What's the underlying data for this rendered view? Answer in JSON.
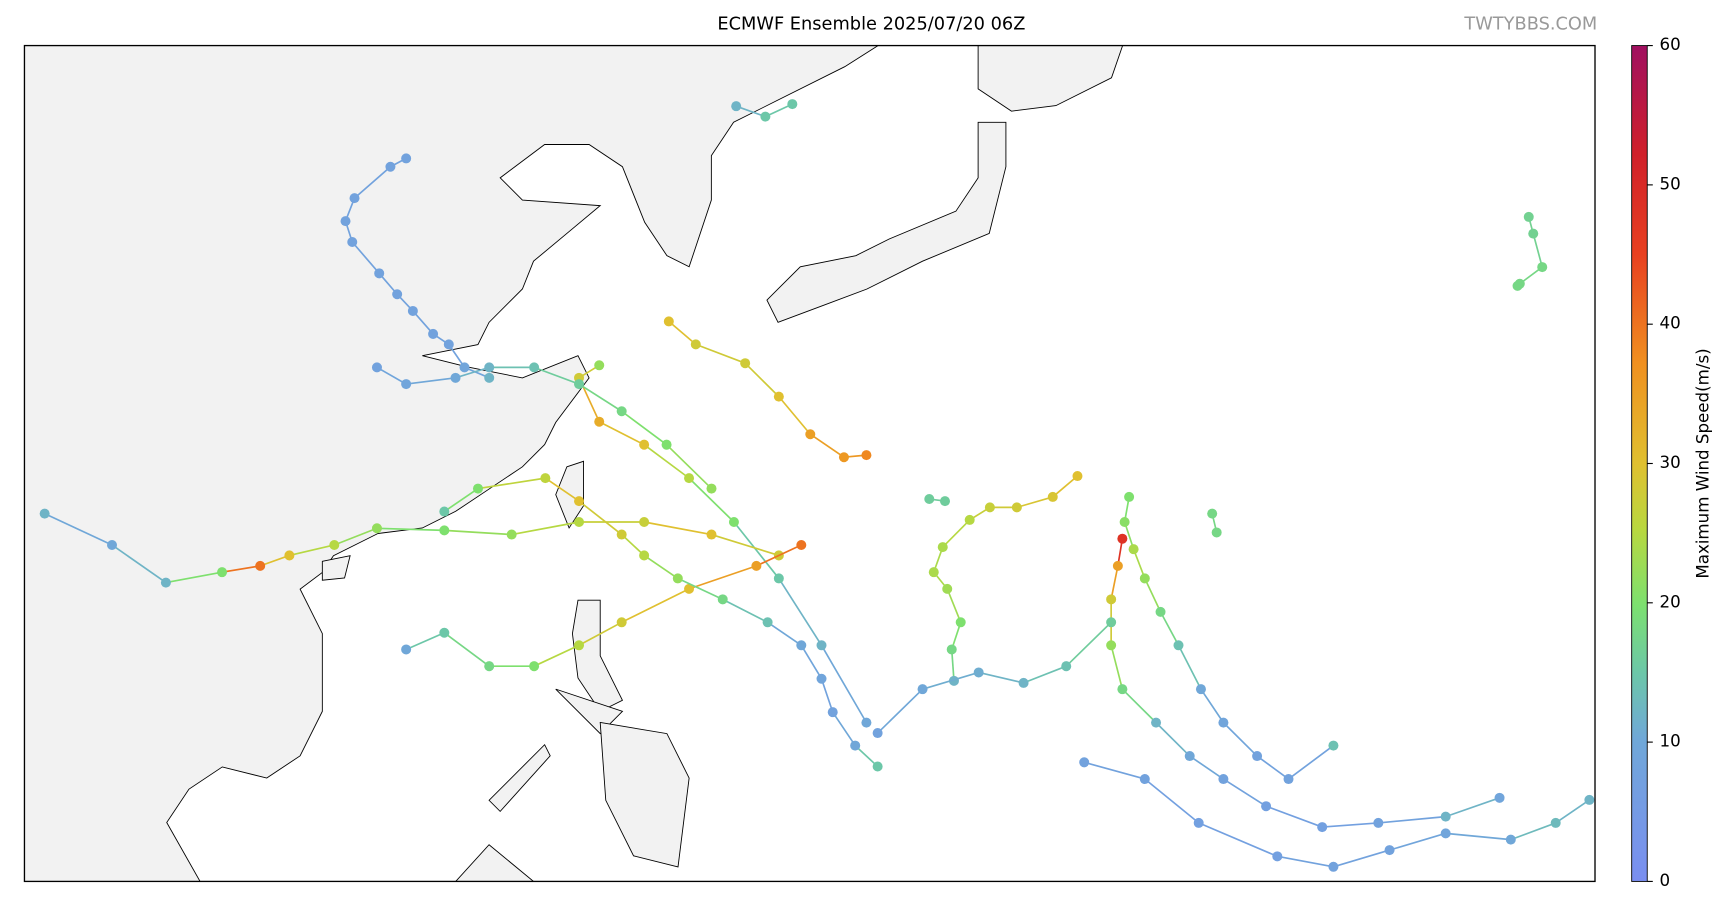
{
  "title": "ECMWF Ensemble 2025/07/20 06Z",
  "watermark": "TWTYBBS.COM",
  "colorbar": {
    "label": "Maximum Wind Speed(m/s)",
    "lim": [
      0,
      60
    ],
    "ticks": [
      0,
      10,
      20,
      30,
      40,
      50,
      60
    ]
  },
  "tracks": [
    {
      "points": [
        {
          "lon": 114.0,
          "lat": 39.6,
          "wind": 8
        },
        {
          "lon": 113.3,
          "lat": 39.2,
          "wind": 8
        },
        {
          "lon": 111.7,
          "lat": 37.7,
          "wind": 8
        },
        {
          "lon": 111.3,
          "lat": 36.6,
          "wind": 8
        },
        {
          "lon": 111.6,
          "lat": 35.6,
          "wind": 8
        },
        {
          "lon": 112.8,
          "lat": 34.1,
          "wind": 8
        },
        {
          "lon": 113.6,
          "lat": 33.1,
          "wind": 8
        },
        {
          "lon": 114.3,
          "lat": 32.3,
          "wind": 8
        },
        {
          "lon": 115.2,
          "lat": 31.2,
          "wind": 8
        },
        {
          "lon": 115.9,
          "lat": 30.7,
          "wind": 8
        },
        {
          "lon": 116.6,
          "lat": 29.6,
          "wind": 9
        },
        {
          "lon": 117.7,
          "lat": 29.1,
          "wind": 12
        }
      ]
    },
    {
      "points": [
        {
          "lon": 143.9,
          "lat": 24.4,
          "wind": 30
        },
        {
          "lon": 142.8,
          "lat": 23.4,
          "wind": 29
        },
        {
          "lon": 141.2,
          "lat": 22.9,
          "wind": 28
        },
        {
          "lon": 140.0,
          "lat": 22.9,
          "wind": 27
        },
        {
          "lon": 139.1,
          "lat": 22.3,
          "wind": 25
        },
        {
          "lon": 137.9,
          "lat": 21.0,
          "wind": 24
        },
        {
          "lon": 137.5,
          "lat": 19.8,
          "wind": 24
        },
        {
          "lon": 138.1,
          "lat": 19.0,
          "wind": 23
        },
        {
          "lon": 138.7,
          "lat": 17.4,
          "wind": 20
        },
        {
          "lon": 138.3,
          "lat": 16.1,
          "wind": 18
        },
        {
          "lon": 138.4,
          "lat": 14.6,
          "wind": 12
        }
      ]
    },
    {
      "points": [
        {
          "lon": 164.0,
          "lat": 36.8,
          "wind": 17
        },
        {
          "lon": 164.2,
          "lat": 36.0,
          "wind": 17
        },
        {
          "lon": 164.6,
          "lat": 34.4,
          "wind": 18
        },
        {
          "lon": 163.6,
          "lat": 33.6,
          "wind": 18
        },
        {
          "lon": 163.5,
          "lat": 33.5,
          "wind": 18
        }
      ]
    },
    {
      "points": [
        {
          "lon": 134.5,
          "lat": 12.6,
          "wind": 10
        },
        {
          "lon": 132.5,
          "lat": 16.3,
          "wind": 12
        },
        {
          "lon": 130.6,
          "lat": 19.5,
          "wind": 15
        },
        {
          "lon": 128.6,
          "lat": 22.2,
          "wind": 20
        },
        {
          "lon": 126.6,
          "lat": 24.3,
          "wind": 25
        },
        {
          "lon": 124.6,
          "lat": 25.9,
          "wind": 30
        },
        {
          "lon": 122.6,
          "lat": 27.0,
          "wind": 33
        },
        {
          "lon": 121.7,
          "lat": 29.1,
          "wind": 28
        },
        {
          "lon": 122.6,
          "lat": 29.7,
          "wind": 22
        }
      ]
    },
    {
      "points": [
        {
          "lon": 130.6,
          "lat": 20.6,
          "wind": 28
        },
        {
          "lon": 127.6,
          "lat": 21.6,
          "wind": 30
        },
        {
          "lon": 124.6,
          "lat": 22.2,
          "wind": 27
        },
        {
          "lon": 121.7,
          "lat": 22.2,
          "wind": 25
        },
        {
          "lon": 118.7,
          "lat": 21.6,
          "wind": 22
        },
        {
          "lon": 115.7,
          "lat": 21.8,
          "wind": 20
        },
        {
          "lon": 112.7,
          "lat": 21.9,
          "wind": 22
        },
        {
          "lon": 110.8,
          "lat": 21.1,
          "wind": 25
        },
        {
          "lon": 108.8,
          "lat": 20.6,
          "wind": 30
        },
        {
          "lon": 107.5,
          "lat": 20.1,
          "wind": 40
        },
        {
          "lon": 105.8,
          "lat": 19.8,
          "wind": 20
        },
        {
          "lon": 103.3,
          "lat": 19.3,
          "wind": 12
        },
        {
          "lon": 100.9,
          "lat": 21.1,
          "wind": 10
        },
        {
          "lon": 97.9,
          "lat": 22.6,
          "wind": 12
        }
      ]
    },
    {
      "points": [
        {
          "lon": 145.9,
          "lat": 21.4,
          "wind": 48
        },
        {
          "lon": 145.7,
          "lat": 20.1,
          "wind": 35
        },
        {
          "lon": 145.4,
          "lat": 18.5,
          "wind": 28
        },
        {
          "lon": 145.4,
          "lat": 16.3,
          "wind": 22
        },
        {
          "lon": 145.9,
          "lat": 14.2,
          "wind": 18
        },
        {
          "lon": 147.4,
          "lat": 12.6,
          "wind": 12
        },
        {
          "lon": 148.9,
          "lat": 11.0,
          "wind": 10
        },
        {
          "lon": 150.4,
          "lat": 9.9,
          "wind": 8
        },
        {
          "lon": 152.3,
          "lat": 8.6,
          "wind": 7
        },
        {
          "lon": 154.8,
          "lat": 7.6,
          "wind": 7
        },
        {
          "lon": 157.3,
          "lat": 7.8,
          "wind": 8
        },
        {
          "lon": 160.3,
          "lat": 8.1,
          "wind": 12
        },
        {
          "lon": 162.7,
          "lat": 9.0,
          "wind": 9
        }
      ]
    },
    {
      "points": [
        {
          "lon": 146.2,
          "lat": 23.4,
          "wind": 20
        },
        {
          "lon": 146.0,
          "lat": 22.2,
          "wind": 21
        },
        {
          "lon": 146.4,
          "lat": 20.9,
          "wind": 24
        },
        {
          "lon": 146.9,
          "lat": 19.5,
          "wind": 22
        },
        {
          "lon": 147.6,
          "lat": 17.9,
          "wind": 18
        },
        {
          "lon": 148.4,
          "lat": 16.3,
          "wind": 14
        },
        {
          "lon": 149.4,
          "lat": 14.2,
          "wind": 10
        },
        {
          "lon": 150.4,
          "lat": 12.6,
          "wind": 9
        },
        {
          "lon": 151.9,
          "lat": 11.0,
          "wind": 8
        },
        {
          "lon": 153.3,
          "lat": 9.9,
          "wind": 8
        },
        {
          "lon": 155.3,
          "lat": 11.5,
          "wind": 14
        }
      ]
    },
    {
      "points": [
        {
          "lon": 166.7,
          "lat": 8.9,
          "wind": 12
        },
        {
          "lon": 165.2,
          "lat": 7.8,
          "wind": 13
        },
        {
          "lon": 163.2,
          "lat": 7.0,
          "wind": 10
        },
        {
          "lon": 160.3,
          "lat": 7.3,
          "wind": 9
        },
        {
          "lon": 157.8,
          "lat": 6.5,
          "wind": 8
        },
        {
          "lon": 155.3,
          "lat": 5.7,
          "wind": 8
        },
        {
          "lon": 152.8,
          "lat": 6.2,
          "wind": 7
        },
        {
          "lon": 149.3,
          "lat": 7.8,
          "wind": 7
        },
        {
          "lon": 146.9,
          "lat": 9.9,
          "wind": 8
        },
        {
          "lon": 144.2,
          "lat": 10.7,
          "wind": 8
        }
      ]
    },
    {
      "points": [
        {
          "lon": 145.4,
          "lat": 17.4,
          "wind": 16
        },
        {
          "lon": 143.4,
          "lat": 15.3,
          "wind": 14
        },
        {
          "lon": 141.5,
          "lat": 14.5,
          "wind": 12
        },
        {
          "lon": 139.5,
          "lat": 15.0,
          "wind": 11
        },
        {
          "lon": 137.0,
          "lat": 14.2,
          "wind": 10
        },
        {
          "lon": 135.0,
          "lat": 12.1,
          "wind": 8
        }
      ]
    },
    {
      "points": [
        {
          "lon": 131.6,
          "lat": 21.1,
          "wind": 40
        },
        {
          "lon": 129.6,
          "lat": 20.1,
          "wind": 35
        },
        {
          "lon": 126.6,
          "lat": 19.0,
          "wind": 30
        },
        {
          "lon": 123.6,
          "lat": 17.4,
          "wind": 28
        },
        {
          "lon": 121.7,
          "lat": 16.3,
          "wind": 25
        },
        {
          "lon": 119.7,
          "lat": 15.3,
          "wind": 20
        },
        {
          "lon": 117.7,
          "lat": 15.3,
          "wind": 18
        },
        {
          "lon": 115.7,
          "lat": 16.9,
          "wind": 15
        },
        {
          "lon": 114.0,
          "lat": 16.1,
          "wind": 10
        }
      ]
    },
    {
      "points": [
        {
          "lon": 125.7,
          "lat": 31.8,
          "wind": 30
        },
        {
          "lon": 126.9,
          "lat": 30.7,
          "wind": 28
        },
        {
          "lon": 129.1,
          "lat": 29.8,
          "wind": 28
        },
        {
          "lon": 130.6,
          "lat": 28.2,
          "wind": 30
        },
        {
          "lon": 132.0,
          "lat": 26.4,
          "wind": 35
        },
        {
          "lon": 133.5,
          "lat": 25.3,
          "wind": 36
        },
        {
          "lon": 134.5,
          "lat": 25.4,
          "wind": 38
        }
      ]
    },
    {
      "points": [
        {
          "lon": 128.7,
          "lat": 42.1,
          "wind": 12
        },
        {
          "lon": 130.0,
          "lat": 41.6,
          "wind": 15
        },
        {
          "lon": 131.2,
          "lat": 42.2,
          "wind": 15
        }
      ]
    },
    {
      "points": [
        {
          "lon": 135.0,
          "lat": 10.5,
          "wind": 15
        },
        {
          "lon": 134.0,
          "lat": 11.5,
          "wind": 10
        },
        {
          "lon": 133.0,
          "lat": 13.1,
          "wind": 8
        },
        {
          "lon": 132.5,
          "lat": 14.7,
          "wind": 9
        },
        {
          "lon": 131.6,
          "lat": 16.3,
          "wind": 10
        },
        {
          "lon": 130.1,
          "lat": 17.4,
          "wind": 14
        },
        {
          "lon": 128.1,
          "lat": 18.5,
          "wind": 18
        },
        {
          "lon": 126.1,
          "lat": 19.5,
          "wind": 22
        },
        {
          "lon": 124.6,
          "lat": 20.6,
          "wind": 25
        },
        {
          "lon": 123.6,
          "lat": 21.6,
          "wind": 28
        },
        {
          "lon": 121.7,
          "lat": 23.2,
          "wind": 30
        },
        {
          "lon": 120.2,
          "lat": 24.3,
          "wind": 26
        },
        {
          "lon": 117.2,
          "lat": 23.8,
          "wind": 20
        },
        {
          "lon": 115.7,
          "lat": 22.7,
          "wind": 15
        }
      ]
    },
    {
      "points": [
        {
          "lon": 127.6,
          "lat": 23.8,
          "wind": 22
        },
        {
          "lon": 125.6,
          "lat": 25.9,
          "wind": 20
        },
        {
          "lon": 123.6,
          "lat": 27.5,
          "wind": 18
        },
        {
          "lon": 121.7,
          "lat": 28.8,
          "wind": 16
        },
        {
          "lon": 119.7,
          "lat": 29.6,
          "wind": 14
        },
        {
          "lon": 117.7,
          "lat": 29.6,
          "wind": 12
        },
        {
          "lon": 116.2,
          "lat": 29.1,
          "wind": 10
        },
        {
          "lon": 114.0,
          "lat": 28.8,
          "wind": 9
        },
        {
          "lon": 112.7,
          "lat": 29.6,
          "wind": 8
        }
      ]
    },
    {
      "points": [
        {
          "lon": 149.9,
          "lat": 22.6,
          "wind": 18
        },
        {
          "lon": 150.1,
          "lat": 21.7,
          "wind": 18
        }
      ]
    },
    {
      "points": [
        {
          "lon": 137.3,
          "lat": 23.3,
          "wind": 16
        },
        {
          "lon": 138.0,
          "lat": 23.2,
          "wind": 16
        }
      ]
    }
  ]
}
